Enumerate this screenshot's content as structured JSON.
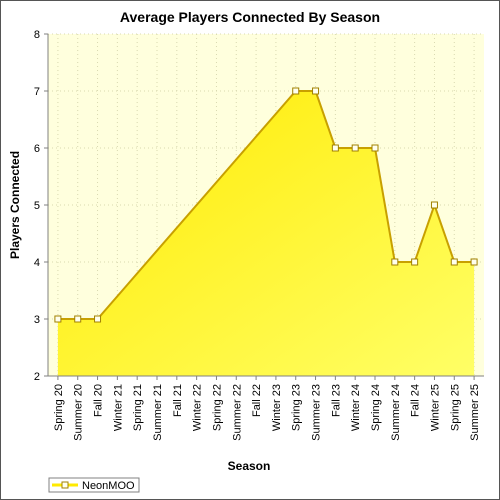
{
  "chart_data": {
    "type": "area",
    "title": "Average Players Connected By Season",
    "xlabel": "Season",
    "ylabel": "Players Connected",
    "categories": [
      "Spring 20",
      "Summer 20",
      "Fall 20",
      "Winter 21",
      "Spring 21",
      "Summer 21",
      "Fall 21",
      "Winter 22",
      "Spring 22",
      "Summer 22",
      "Fall 22",
      "Winter 23",
      "Spring 23",
      "Summer 23",
      "Fall 23",
      "Winter 24",
      "Spring 24",
      "Summer 24",
      "Fall 24",
      "Winter 25",
      "Spring 25",
      "Summer 25"
    ],
    "series": [
      {
        "name": "NeonMOO",
        "values": [
          3,
          3,
          3,
          null,
          null,
          null,
          null,
          null,
          null,
          null,
          null,
          null,
          7,
          7,
          6,
          6,
          6,
          4,
          4,
          5,
          4,
          4
        ]
      }
    ],
    "ylim": [
      2,
      8
    ],
    "yticks": [
      2,
      3,
      4,
      5,
      6,
      7,
      8
    ],
    "grid": true,
    "legend": "bottom-left",
    "colors": {
      "fill_top": "#ffea00",
      "fill_bottom": "#ffff66",
      "line": "#c8a000",
      "plot_bg": "#ffffdd",
      "grid": "#d8d8b0",
      "marker_fill": "#ffffee",
      "marker_stroke": "#a08000"
    }
  }
}
